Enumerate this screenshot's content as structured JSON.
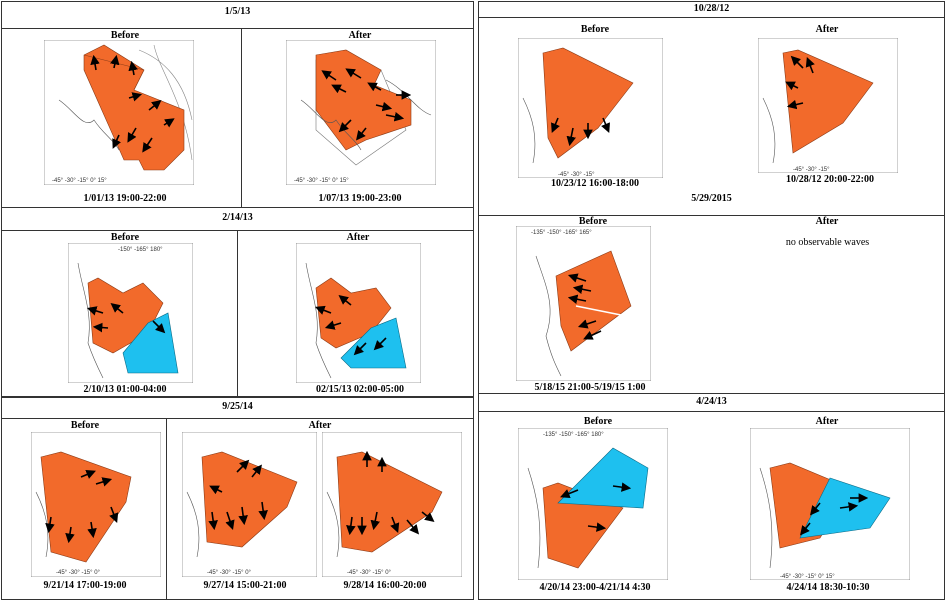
{
  "colors": {
    "sector_orange": "#f26a2b",
    "sector_blue": "#1ec0ef",
    "arrow": "#000000",
    "coast": "#555555",
    "grid": "#888888"
  },
  "left": {
    "p1": {
      "date": "1/5/13",
      "before_label": "Before",
      "after_label": "After",
      "before_caption": "1/01/13 19:00-22:00",
      "after_caption": "1/07/13 19:00-23:00"
    },
    "p2": {
      "date": "2/14/13",
      "before_label": "Before",
      "after_label": "After",
      "before_caption": "2/10/13 01:00-04:00",
      "after_caption": "02/15/13 02:00-05:00"
    },
    "p3": {
      "date": "9/25/14",
      "before_label": "Before",
      "after_label": "After",
      "before_caption": "9/21/14 17:00-19:00",
      "after_caption_1": "9/27/14 15:00-21:00",
      "after_caption_2": "9/28/14 16:00-20:00"
    }
  },
  "right": {
    "p1": {
      "date": "10/28/12",
      "before_label": "Before",
      "after_label": "After",
      "before_caption": "10/23/12 16:00-18:00",
      "after_caption": "10/28/12 20:00-22:00"
    },
    "p2": {
      "date": "5/29/2015",
      "before_label": "Before",
      "after_label": "After",
      "before_caption": "5/18/15 21:00-5/19/15 1:00",
      "after_note": "no observable waves"
    },
    "p3": {
      "date": "4/24/13",
      "before_label": "Before",
      "after_label": "After",
      "before_caption": "4/20/14 23:00-4/21/14 4:30",
      "after_caption": "4/24/14 18:30-10:30"
    }
  }
}
